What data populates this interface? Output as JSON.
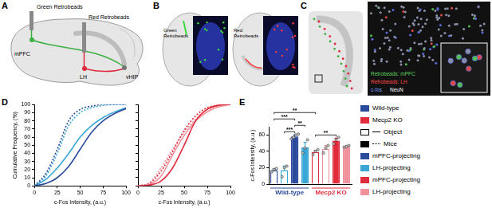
{
  "panels": {
    "A": {
      "letter": "A",
      "labels": {
        "green_injection": "Green Retrobeads",
        "red_injection": "Red Retrobeads",
        "mpfc": "mPFC",
        "vhip": "vHIP",
        "lh": "LH"
      }
    },
    "B": {
      "letter": "B",
      "labels": [
        "Green Retrobeads",
        "Red Retrobeads"
      ]
    },
    "C": {
      "letter": "C",
      "legend": [
        {
          "label": "Retrobeads: mPFC",
          "color": "#5fd35f"
        },
        {
          "label": "Retrobeads: LH",
          "color": "#ff4a4a"
        },
        {
          "label": "c-fos",
          "color": "#7b98ff"
        },
        {
          "label": "NeuN",
          "color": "#ffffff"
        }
      ]
    },
    "D": {
      "letter": "D"
    },
    "E": {
      "letter": "E"
    }
  },
  "legend_box": {
    "groups": [
      {
        "label": "Wild-type",
        "color": "#2a4b9b"
      },
      {
        "label": "Mecp2 KO",
        "color": "#e02b3c"
      }
    ],
    "conditions": [
      {
        "label": "Object",
        "fill": false,
        "line_style": "solid"
      },
      {
        "label": "Mice",
        "fill": true,
        "line_style": "dotted"
      }
    ],
    "projections": [
      {
        "label": "mPFC-projecting",
        "group": "Wild-type",
        "color": "#2a4b9b"
      },
      {
        "label": "LH-projecting",
        "group": "Wild-type",
        "color": "#39a6d6"
      },
      {
        "label": "mPFC-projecting",
        "group": "Mecp2 KO",
        "color": "#e02b3c"
      },
      {
        "label": "LH-projecting",
        "group": "Mecp2 KO",
        "color": "#f0919b"
      }
    ]
  },
  "chart_data": [
    {
      "type": "line",
      "xlabel": "c-Fos Intensity, (a.u.)",
      "ylabel": "Cumulative Frequency, (%)",
      "xlim": [
        0,
        100
      ],
      "xticks": [
        0,
        25,
        50,
        75,
        100
      ],
      "ylim": [
        0,
        100
      ],
      "yticks": [
        0,
        10,
        20,
        30,
        40,
        50,
        60,
        70,
        80,
        90,
        100
      ],
      "grid": false,
      "x": [
        0,
        12.5,
        25,
        37.5,
        50,
        62.5,
        75,
        87.5,
        100
      ],
      "series": [
        {
          "name": "mPFC-projecting",
          "group": "Wild-type",
          "condition": "Object",
          "values": [
            0,
            3,
            10,
            24,
            45,
            66,
            80,
            89,
            95
          ]
        },
        {
          "name": "LH-projecting",
          "group": "Wild-type",
          "condition": "Object",
          "values": [
            0,
            8,
            22,
            40,
            60,
            74,
            84,
            91,
            96
          ]
        },
        {
          "name": "mPFC-projecting",
          "group": "Wild-type",
          "condition": "Mice",
          "values": [
            0,
            15,
            45,
            80,
            94,
            98,
            100,
            100,
            100
          ]
        },
        {
          "name": "LH-projecting",
          "group": "Wild-type",
          "condition": "Mice",
          "values": [
            0,
            12,
            40,
            74,
            90,
            96,
            99,
            100,
            100
          ]
        }
      ]
    },
    {
      "type": "line",
      "xlabel": "c-Fos Intensity, (a.u.)",
      "xlim": [
        0,
        100
      ],
      "xticks": [
        0,
        25,
        50,
        75,
        100
      ],
      "ylim": [
        0,
        100
      ],
      "yticks": [
        0,
        10,
        20,
        30,
        40,
        50,
        60,
        70,
        80,
        90,
        100
      ],
      "grid": false,
      "tick_labels": "x",
      "x": [
        0,
        12.5,
        25,
        37.5,
        50,
        62.5,
        75,
        87.5,
        100
      ],
      "series": [
        {
          "name": "mPFC-projecting",
          "group": "Mecp2 KO",
          "condition": "Object",
          "values": [
            0,
            1,
            6,
            22,
            50,
            80,
            94,
            99,
            100
          ]
        },
        {
          "name": "LH-projecting",
          "group": "Mecp2 KO",
          "condition": "Object",
          "values": [
            0,
            2,
            12,
            38,
            62,
            80,
            91,
            97,
            100
          ]
        },
        {
          "name": "mPFC-projecting",
          "group": "Mecp2 KO",
          "condition": "Mice",
          "values": [
            0,
            3,
            18,
            42,
            68,
            86,
            96,
            99,
            100
          ]
        },
        {
          "name": "LH-projecting",
          "group": "Mecp2 KO",
          "condition": "Mice",
          "values": [
            0,
            4,
            22,
            45,
            66,
            82,
            94,
            98,
            100
          ]
        }
      ]
    },
    {
      "type": "bar",
      "ylabel": "c-Fos Intensity, (a.u.)",
      "ylim": [
        0,
        70
      ],
      "yticks": [
        0,
        20,
        40,
        60
      ],
      "grid": false,
      "tick_labels": "y",
      "categories": [
        null,
        null,
        null,
        null,
        null,
        null,
        null,
        null
      ],
      "groups": [
        "Wild-type",
        "Wild-type",
        "Wild-type",
        "Wild-type",
        "Mecp2 KO",
        "Mecp2 KO",
        "Mecp2 KO",
        "Mecp2 KO"
      ],
      "conditions": [
        "Object",
        "Object",
        "Mice",
        "Mice",
        "Object",
        "Object",
        "Mice",
        "Mice"
      ],
      "projections": [
        "mPFC-projecting",
        "LH-projecting",
        "mPFC-projecting",
        "LH-projecting",
        "mPFC-projecting",
        "LH-projecting",
        "mPFC-projecting",
        "LH-projecting"
      ],
      "values": [
        17,
        17,
        58,
        45,
        39,
        43,
        53,
        46
      ],
      "errors": [
        1.5,
        5,
        2,
        6,
        2,
        4,
        3,
        1
      ],
      "points": [
        [
          15,
          18,
          19
        ],
        [
          9,
          20,
          22
        ],
        [
          55,
          57,
          60,
          61
        ],
        [
          38,
          44,
          54
        ],
        [
          36,
          40,
          42
        ],
        [
          38,
          44,
          47
        ],
        [
          49,
          54,
          57
        ],
        [
          45,
          46,
          47
        ]
      ],
      "annotations": [
        {
          "text": "***",
          "from": 0,
          "to": 2
        },
        {
          "text": "***",
          "from": 1,
          "to": 2
        },
        {
          "text": "**",
          "from": 2,
          "to": 3
        },
        {
          "text": "**",
          "from": 0,
          "to": 4
        },
        {
          "text": "**",
          "from": 4,
          "to": 6
        }
      ]
    }
  ]
}
